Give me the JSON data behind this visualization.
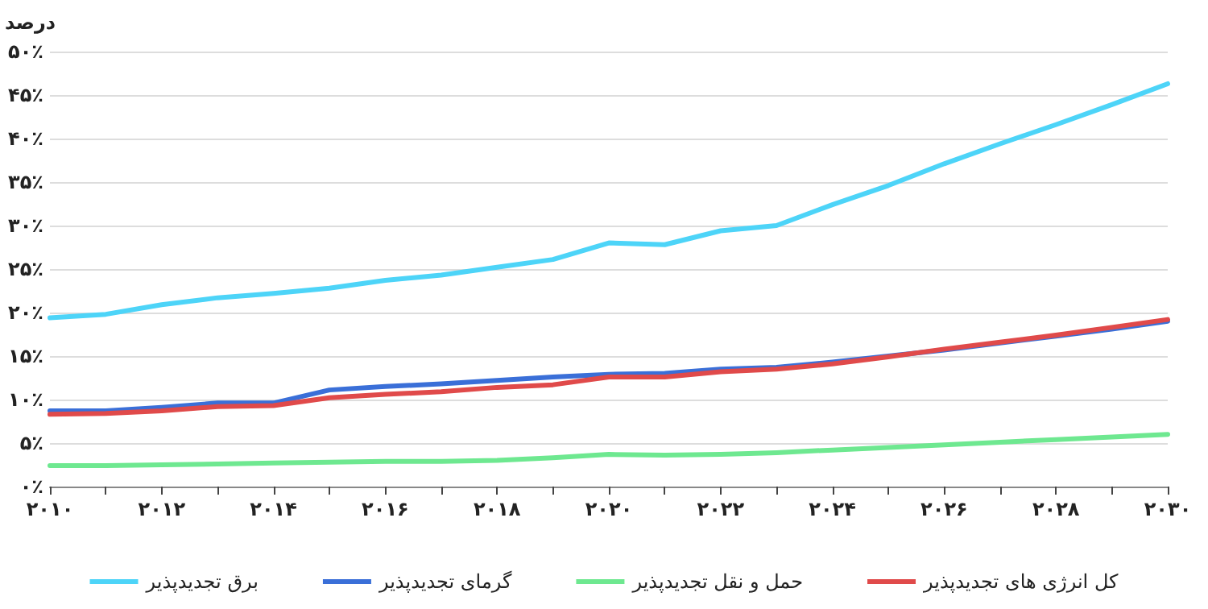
{
  "chart_data": {
    "type": "line",
    "ylabel": "درصد",
    "x": [
      2010,
      2011,
      2012,
      2013,
      2014,
      2015,
      2016,
      2017,
      2018,
      2019,
      2020,
      2021,
      2022,
      2023,
      2024,
      2025,
      2026,
      2027,
      2028,
      2029,
      2030
    ],
    "series": [
      {
        "name": "برق تجدیدپذیر",
        "color": "#4dd4f8",
        "values": [
          19.4,
          19.8,
          20.9,
          21.7,
          22.2,
          22.8,
          23.7,
          24.3,
          25.2,
          26.1,
          28.0,
          27.8,
          29.4,
          30.0,
          32.4,
          34.6,
          37.1,
          39.4,
          41.6,
          43.9,
          46.3
        ]
      },
      {
        "name": "گرمای تجدیدپذیر",
        "color": "#3a6fd8",
        "values": [
          8.7,
          8.7,
          9.1,
          9.6,
          9.6,
          11.1,
          11.5,
          11.8,
          12.2,
          12.6,
          12.9,
          13.0,
          13.5,
          13.7,
          14.3,
          15.0,
          15.7,
          16.5,
          17.3,
          18.1,
          19.0
        ]
      },
      {
        "name": "حمل و نقل تجدیدپذیر",
        "color": "#6ee890",
        "values": [
          2.4,
          2.4,
          2.5,
          2.6,
          2.7,
          2.8,
          2.9,
          2.9,
          3.0,
          3.3,
          3.7,
          3.6,
          3.7,
          3.9,
          4.2,
          4.5,
          4.8,
          5.1,
          5.4,
          5.7,
          6.0
        ]
      },
      {
        "name": "کل انرژی های تجدیدپذیر",
        "color": "#e04a4a",
        "values": [
          8.3,
          8.4,
          8.7,
          9.2,
          9.3,
          10.2,
          10.6,
          10.9,
          11.4,
          11.7,
          12.6,
          12.6,
          13.2,
          13.5,
          14.1,
          14.9,
          15.8,
          16.6,
          17.4,
          18.3,
          19.2
        ]
      }
    ],
    "xlim": [
      2010,
      2030
    ],
    "xticks": [
      {
        "value": 2010,
        "label": "۲۰۱۰"
      },
      {
        "value": 2011,
        "label": null
      },
      {
        "value": 2012,
        "label": "۲۰۱۲"
      },
      {
        "value": 2013,
        "label": null
      },
      {
        "value": 2014,
        "label": "۲۰۱۴"
      },
      {
        "value": 2015,
        "label": null
      },
      {
        "value": 2016,
        "label": "۲۰۱۶"
      },
      {
        "value": 2017,
        "label": null
      },
      {
        "value": 2018,
        "label": "۲۰۱۸"
      },
      {
        "value": 2019,
        "label": null
      },
      {
        "value": 2020,
        "label": "۲۰۲۰"
      },
      {
        "value": 2021,
        "label": null
      },
      {
        "value": 2022,
        "label": "۲۰۲۲"
      },
      {
        "value": 2023,
        "label": null
      },
      {
        "value": 2024,
        "label": "۲۰۲۴"
      },
      {
        "value": 2025,
        "label": null
      },
      {
        "value": 2026,
        "label": "۲۰۲۶"
      },
      {
        "value": 2027,
        "label": null
      },
      {
        "value": 2028,
        "label": "۲۰۲۸"
      },
      {
        "value": 2029,
        "label": null
      },
      {
        "value": 2030,
        "label": "۲۰۳۰"
      }
    ],
    "ylim": [
      0,
      50
    ],
    "yticks": [
      {
        "value": 0,
        "label": "۰٪"
      },
      {
        "value": 5,
        "label": "۵٪"
      },
      {
        "value": 10,
        "label": "۱۰٪"
      },
      {
        "value": 15,
        "label": "۱۵٪"
      },
      {
        "value": 20,
        "label": "۲۰٪"
      },
      {
        "value": 25,
        "label": "۲۵٪"
      },
      {
        "value": 30,
        "label": "۳۰٪"
      },
      {
        "value": 35,
        "label": "۳۵٪"
      },
      {
        "value": 40,
        "label": "۴۰٪"
      },
      {
        "value": 45,
        "label": "۴۵٪"
      },
      {
        "value": 50,
        "label": "۵۰٪"
      }
    ],
    "grid": "y",
    "legend": "bottom",
    "marker": "none",
    "line_style": "solid"
  }
}
